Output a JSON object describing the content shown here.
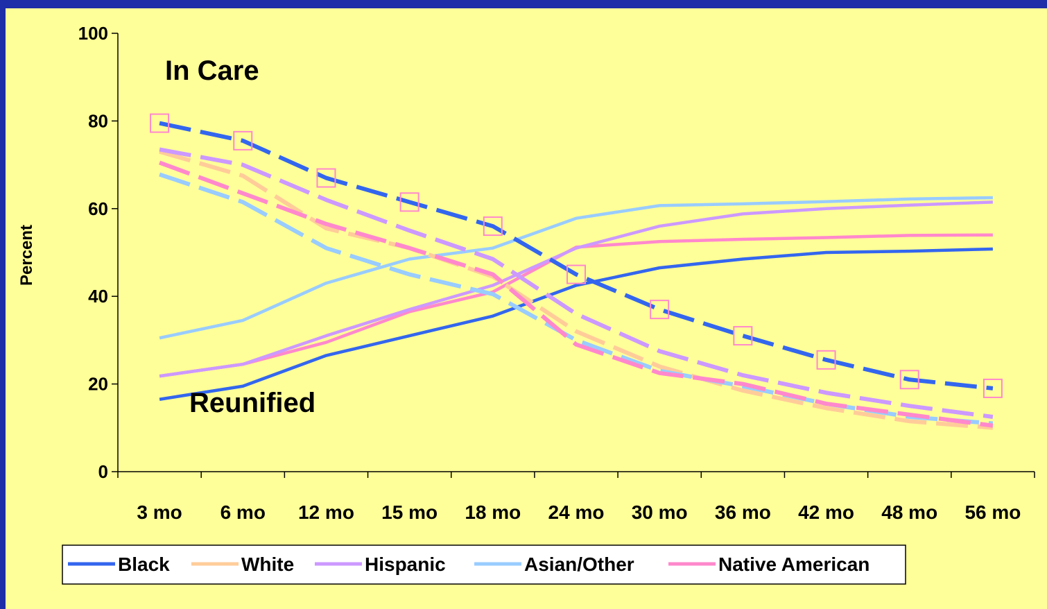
{
  "chart_data": {
    "type": "line",
    "ylabel": "Percent",
    "ylim": [
      0,
      100
    ],
    "yticks": [
      0,
      20,
      40,
      60,
      80,
      100
    ],
    "categories": [
      "3 mo",
      "6 mo",
      "12 mo",
      "15 mo",
      "18 mo",
      "24 mo",
      "30 mo",
      "36 mo",
      "42 mo",
      "48 mo",
      "56 mo"
    ],
    "tick_labels": [
      {
        "num": "3",
        "unit": "mo"
      },
      {
        "num": "6",
        "unit": "mo"
      },
      {
        "num": "12",
        "unit": "mo"
      },
      {
        "num": "15",
        "unit": "mo"
      },
      {
        "num": "18",
        "unit": "mo"
      },
      {
        "num": "24",
        "unit": "mo"
      },
      {
        "num": "30",
        "unit": "mo"
      },
      {
        "num": "36",
        "unit": "mo"
      },
      {
        "num": "42",
        "unit": "mo"
      },
      {
        "num": "48",
        "unit": "mo"
      },
      {
        "num": "56",
        "unit": "mo"
      }
    ],
    "annotations": {
      "in_care": "In Care",
      "reunified": "Reunified"
    },
    "legend_placement": "bottom",
    "groups": [
      {
        "name": "Black",
        "color": "#3366ee",
        "in_care": [
          79.5,
          75.5,
          67,
          61.5,
          56,
          45,
          37,
          31,
          25.5,
          21,
          19
        ],
        "reunified": [
          16.5,
          19.5,
          26.5,
          31,
          35.5,
          42.5,
          46.5,
          48.5,
          50,
          50.3,
          50.8
        ]
      },
      {
        "name": "White",
        "color": "#ffcc99",
        "in_care": [
          73,
          67.5,
          55.5,
          51,
          44.5,
          32,
          24,
          18.5,
          14.5,
          11.5,
          10
        ]
      },
      {
        "name": "Hispanic",
        "color": "#cc99ff",
        "in_care": [
          73.5,
          70,
          62,
          55,
          48.5,
          36,
          27.5,
          22,
          18,
          15,
          12.5
        ],
        "reunified": [
          21.8,
          24.5,
          31,
          37,
          42.5,
          51,
          56,
          58.8,
          60,
          60.8,
          61.5
        ]
      },
      {
        "name": "Asian/Other",
        "color": "#99ccff",
        "in_care": [
          67.8,
          61.5,
          51,
          45,
          40.5,
          30,
          23,
          19.5,
          15.5,
          12.5,
          11
        ],
        "reunified": [
          30.5,
          34.5,
          43,
          48.5,
          51,
          57.8,
          60.7,
          61.1,
          61.6,
          62.2,
          62.5
        ]
      },
      {
        "name": "Native American",
        "color": "#ff88cc",
        "in_care": [
          70.5,
          63.5,
          56.5,
          51,
          45,
          29,
          22.5,
          20,
          15.5,
          13,
          10.5
        ],
        "reunified": [
          21.8,
          24.5,
          29.5,
          36.5,
          41,
          51.2,
          52.5,
          53,
          53.4,
          53.9,
          54
        ]
      }
    ]
  }
}
